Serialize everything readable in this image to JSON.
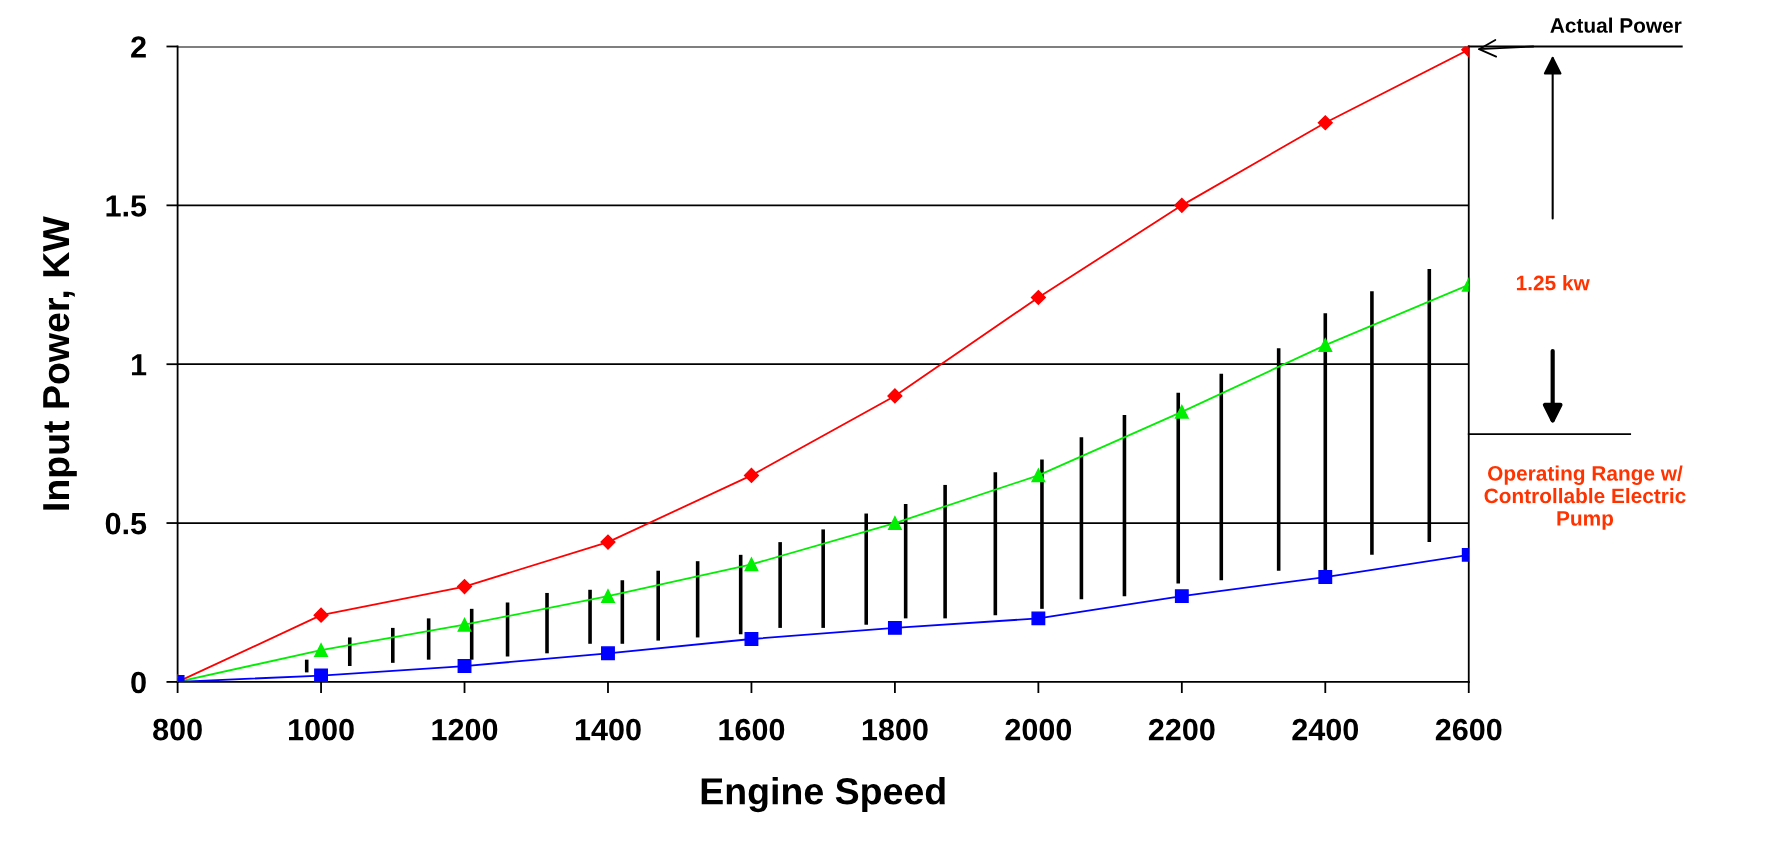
{
  "chart_data": {
    "type": "line",
    "xlabel": "Engine Speed",
    "ylabel": "Input Power, KW",
    "xlim": [
      800,
      2600
    ],
    "xticks": [
      800,
      1000,
      1200,
      1400,
      1600,
      1800,
      2000,
      2200,
      2400,
      2600
    ],
    "ylim": [
      0,
      2
    ],
    "yticks": [
      0,
      0.5,
      1,
      1.5,
      2
    ],
    "grid": "y",
    "x": [
      800,
      1000,
      1200,
      1400,
      1600,
      1800,
      2000,
      2200,
      2400,
      2600
    ],
    "series": [
      {
        "type": "bar",
        "color": "#000000",
        "x": [
          980,
          1040,
          1100,
          1150,
          1210,
          1260,
          1315,
          1375,
          1420,
          1470,
          1525,
          1585,
          1640,
          1700,
          1760,
          1815,
          1870,
          1940,
          2005,
          2060,
          2120,
          2195,
          2255,
          2335,
          2400,
          2465,
          2545
        ],
        "base": [
          0.03,
          0.05,
          0.06,
          0.07,
          0.07,
          0.08,
          0.09,
          0.12,
          0.12,
          0.13,
          0.14,
          0.15,
          0.17,
          0.17,
          0.18,
          0.2,
          0.2,
          0.21,
          0.23,
          0.26,
          0.27,
          0.31,
          0.32,
          0.35,
          0.35,
          0.4,
          0.44
        ],
        "values": [
          0.04,
          0.09,
          0.11,
          0.13,
          0.16,
          0.17,
          0.19,
          0.17,
          0.2,
          0.22,
          0.24,
          0.25,
          0.27,
          0.31,
          0.35,
          0.36,
          0.42,
          0.45,
          0.47,
          0.51,
          0.57,
          0.6,
          0.65,
          0.7,
          0.81,
          0.83,
          0.86
        ]
      },
      {
        "color": "#ff0000",
        "marker": "diamond",
        "values": [
          0,
          0.21,
          0.3,
          0.44,
          0.65,
          0.9,
          1.21,
          1.5,
          1.76,
          1.99
        ]
      },
      {
        "color": "#00ee00",
        "marker": "triangle",
        "values": [
          0,
          0.1,
          0.18,
          0.27,
          0.37,
          0.5,
          0.65,
          0.85,
          1.06,
          1.25
        ]
      },
      {
        "color": "#0000ff",
        "marker": "square",
        "values": [
          0,
          0.02,
          0.05,
          0.09,
          0.135,
          0.17,
          0.2,
          0.27,
          0.33,
          0.4
        ]
      }
    ],
    "annotations": [
      {
        "text": "Actual Power",
        "x": 2600,
        "y": 1.99
      },
      "1.25 kw",
      "Operating Range w/\nControllable Electric\nPump"
    ]
  }
}
